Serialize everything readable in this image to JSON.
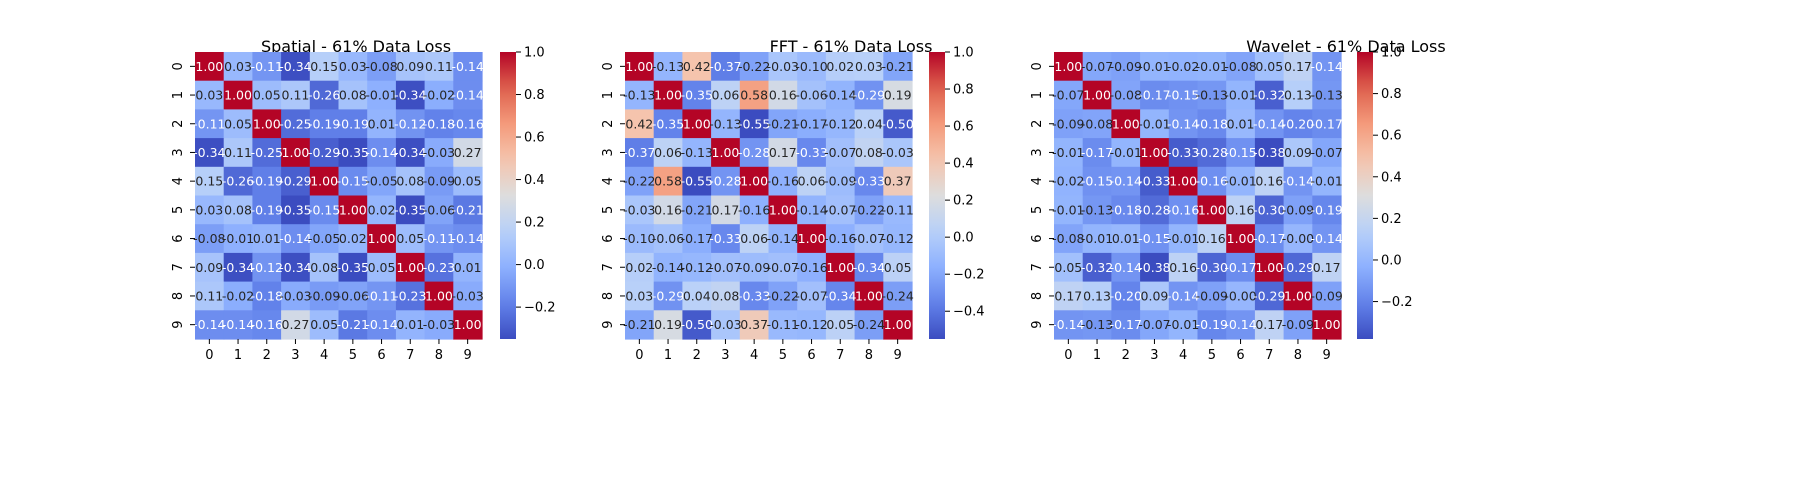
{
  "chart_data": [
    {
      "type": "heatmap",
      "title": "Spatial - 61% Data Loss",
      "x_labels": [
        "0",
        "1",
        "2",
        "3",
        "4",
        "5",
        "6",
        "7",
        "8",
        "9"
      ],
      "y_labels": [
        "0",
        "1",
        "2",
        "3",
        "4",
        "5",
        "6",
        "7",
        "8",
        "9"
      ],
      "values": [
        [
          1.0,
          0.03,
          -0.11,
          -0.34,
          0.15,
          0.03,
          -0.08,
          0.09,
          0.11,
          -0.14
        ],
        [
          0.03,
          1.0,
          0.05,
          0.11,
          -0.26,
          0.08,
          -0.01,
          -0.34,
          -0.02,
          -0.14
        ],
        [
          -0.11,
          0.05,
          1.0,
          -0.25,
          -0.19,
          -0.19,
          0.01,
          -0.12,
          -0.18,
          -0.16
        ],
        [
          -0.34,
          0.11,
          -0.25,
          1.0,
          -0.29,
          -0.35,
          -0.14,
          -0.34,
          -0.03,
          0.27
        ],
        [
          0.15,
          -0.26,
          -0.19,
          -0.29,
          1.0,
          -0.15,
          -0.05,
          0.08,
          -0.09,
          0.05
        ],
        [
          0.03,
          0.08,
          -0.19,
          -0.35,
          -0.15,
          1.0,
          0.02,
          -0.35,
          -0.06,
          -0.21
        ],
        [
          -0.08,
          -0.01,
          0.01,
          -0.14,
          -0.05,
          0.02,
          1.0,
          0.05,
          -0.11,
          -0.14
        ],
        [
          0.09,
          -0.34,
          -0.12,
          -0.34,
          0.08,
          -0.35,
          0.05,
          1.0,
          -0.23,
          0.01
        ],
        [
          0.11,
          -0.02,
          -0.18,
          -0.03,
          -0.09,
          -0.06,
          -0.11,
          -0.23,
          1.0,
          -0.03
        ],
        [
          -0.14,
          -0.14,
          -0.16,
          0.27,
          0.05,
          -0.21,
          -0.14,
          0.01,
          -0.03,
          1.0
        ]
      ],
      "colormap": "coolwarm",
      "vmin": -0.35,
      "vmax": 1.0,
      "colorbar_ticks": [
        1.0,
        0.8,
        0.6,
        0.4,
        0.2,
        0.0,
        -0.2
      ],
      "colorbar_tick_labels": [
        "1.0",
        "0.8",
        "0.6",
        "0.4",
        "0.2",
        "0.0",
        "−0.2"
      ],
      "annotated": true,
      "value_format": "2f"
    },
    {
      "type": "heatmap",
      "title": "FFT - 61% Data Loss",
      "x_labels": [
        "0",
        "1",
        "2",
        "3",
        "4",
        "5",
        "6",
        "7",
        "8",
        "9"
      ],
      "y_labels": [
        "0",
        "1",
        "2",
        "3",
        "4",
        "5",
        "6",
        "7",
        "8",
        "9"
      ],
      "values": [
        [
          1.0,
          -0.13,
          0.42,
          -0.37,
          -0.22,
          -0.03,
          -0.1,
          0.02,
          0.03,
          -0.21
        ],
        [
          -0.13,
          1.0,
          -0.35,
          0.06,
          0.58,
          0.16,
          -0.06,
          -0.14,
          -0.29,
          0.19
        ],
        [
          0.42,
          -0.35,
          1.0,
          -0.13,
          -0.55,
          -0.21,
          -0.17,
          -0.12,
          0.04,
          -0.5
        ],
        [
          -0.37,
          0.06,
          -0.13,
          1.0,
          -0.28,
          0.17,
          -0.33,
          -0.07,
          0.08,
          -0.03
        ],
        [
          -0.22,
          0.58,
          -0.55,
          -0.28,
          1.0,
          -0.16,
          0.06,
          -0.09,
          -0.33,
          0.37
        ],
        [
          -0.03,
          0.16,
          -0.21,
          0.17,
          -0.16,
          1.0,
          -0.14,
          -0.07,
          -0.22,
          -0.11
        ],
        [
          -0.1,
          -0.06,
          -0.17,
          -0.33,
          0.06,
          -0.14,
          1.0,
          -0.16,
          -0.07,
          -0.12
        ],
        [
          0.02,
          -0.14,
          -0.12,
          -0.07,
          -0.09,
          -0.07,
          -0.16,
          1.0,
          -0.34,
          0.05
        ],
        [
          0.03,
          -0.29,
          0.04,
          0.08,
          -0.33,
          -0.22,
          -0.07,
          -0.34,
          1.0,
          -0.24
        ],
        [
          -0.21,
          0.19,
          -0.5,
          -0.03,
          0.37,
          -0.11,
          -0.12,
          0.05,
          -0.24,
          1.0
        ]
      ],
      "colormap": "coolwarm",
      "vmin": -0.55,
      "vmax": 1.0,
      "colorbar_ticks": [
        1.0,
        0.8,
        0.6,
        0.4,
        0.2,
        0.0,
        -0.2,
        -0.4
      ],
      "colorbar_tick_labels": [
        "1.0",
        "0.8",
        "0.6",
        "0.4",
        "0.2",
        "0.0",
        "−0.2",
        "−0.4"
      ],
      "annotated": true,
      "value_format": "2f"
    },
    {
      "type": "heatmap",
      "title": "Wavelet - 61% Data Loss",
      "x_labels": [
        "0",
        "1",
        "2",
        "3",
        "4",
        "5",
        "6",
        "7",
        "8",
        "9"
      ],
      "y_labels": [
        "0",
        "1",
        "2",
        "3",
        "4",
        "5",
        "6",
        "7",
        "8",
        "9"
      ],
      "values": [
        [
          1.0,
          -0.07,
          -0.09,
          -0.01,
          -0.02,
          -0.01,
          -0.08,
          0.05,
          0.17,
          -0.14
        ],
        [
          -0.07,
          1.0,
          -0.08,
          -0.17,
          -0.15,
          -0.13,
          -0.01,
          -0.32,
          0.13,
          -0.13
        ],
        [
          -0.09,
          -0.08,
          1.0,
          -0.01,
          -0.14,
          -0.18,
          0.01,
          -0.14,
          -0.2,
          -0.17
        ],
        [
          -0.01,
          -0.17,
          -0.01,
          1.0,
          -0.33,
          -0.28,
          -0.15,
          -0.38,
          0.09,
          -0.07
        ],
        [
          -0.02,
          -0.15,
          -0.14,
          -0.33,
          1.0,
          -0.16,
          -0.01,
          0.16,
          -0.14,
          -0.01
        ],
        [
          -0.01,
          -0.13,
          -0.18,
          -0.28,
          -0.16,
          1.0,
          0.16,
          -0.3,
          -0.09,
          -0.19
        ],
        [
          -0.08,
          -0.01,
          0.01,
          -0.15,
          -0.01,
          0.16,
          1.0,
          -0.17,
          -0.0,
          -0.14
        ],
        [
          0.05,
          -0.32,
          -0.14,
          -0.38,
          0.16,
          -0.3,
          -0.17,
          1.0,
          -0.29,
          0.17
        ],
        [
          0.17,
          0.13,
          -0.2,
          0.09,
          -0.14,
          -0.09,
          -0.0,
          -0.29,
          1.0,
          -0.09
        ],
        [
          -0.14,
          -0.13,
          -0.17,
          -0.07,
          -0.01,
          -0.19,
          -0.14,
          0.17,
          -0.09,
          1.0
        ]
      ],
      "colormap": "coolwarm",
      "vmin": -0.38,
      "vmax": 1.0,
      "colorbar_ticks": [
        1.0,
        0.8,
        0.6,
        0.4,
        0.2,
        0.0,
        -0.2
      ],
      "colorbar_tick_labels": [
        "1.0",
        "0.8",
        "0.6",
        "0.4",
        "0.2",
        "0.0",
        "−0.2"
      ],
      "annotated": true,
      "value_format": "2f"
    }
  ]
}
